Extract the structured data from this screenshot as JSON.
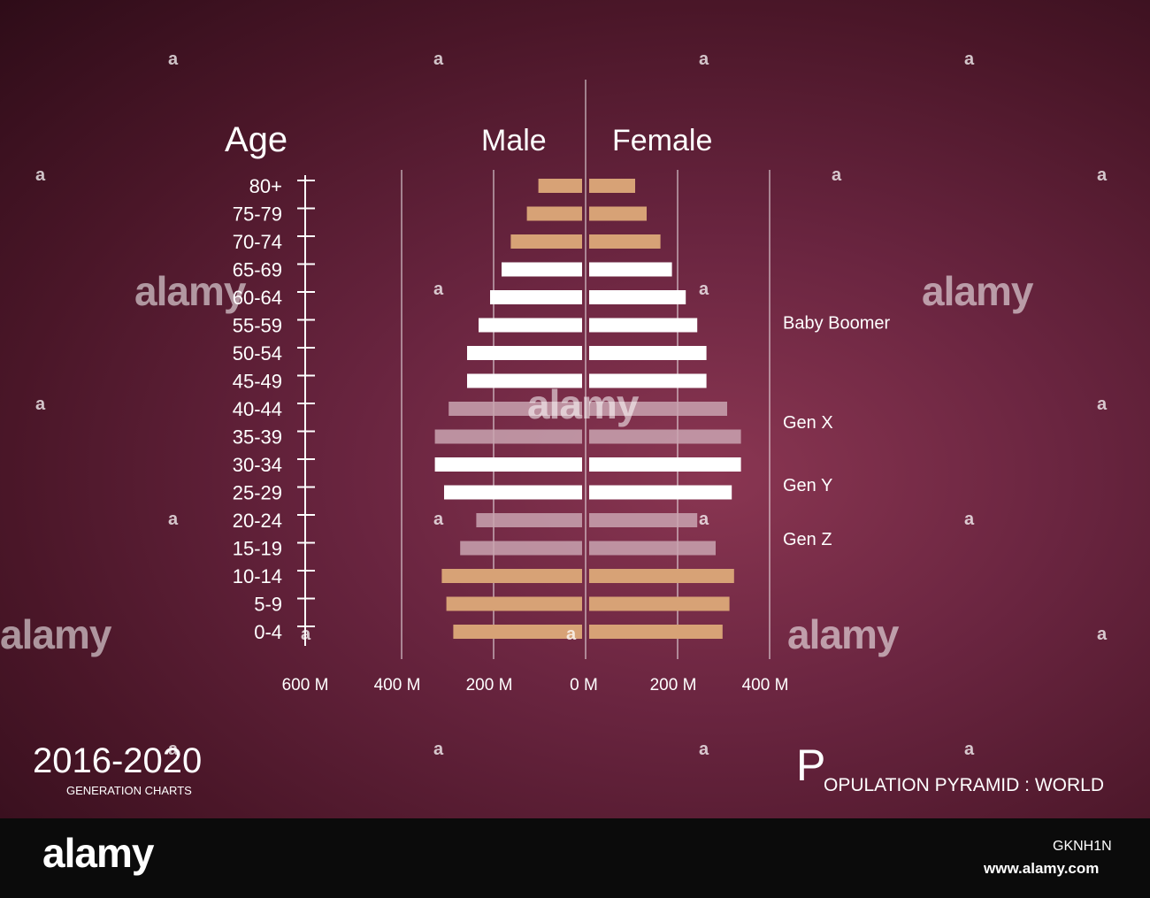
{
  "chart_data": {
    "type": "bar",
    "subtype": "population-pyramid",
    "title": "OPULATION PYRAMID : WORLD",
    "title_initial": "P",
    "age_label": "Age",
    "male_label": "Male",
    "female_label": "Female",
    "categories": [
      "80+",
      "75-79",
      "70-74",
      "65-69",
      "60-64",
      "55-59",
      "50-54",
      "45-49",
      "40-44",
      "35-39",
      "30-34",
      "25-29",
      "20-24",
      "15-19",
      "10-14",
      "5-9",
      "0-4"
    ],
    "series": [
      {
        "name": "Male",
        "values": [
          95,
          120,
          155,
          175,
          200,
          225,
          250,
          250,
          290,
          320,
          320,
          300,
          230,
          265,
          305,
          295,
          280
        ]
      },
      {
        "name": "Female",
        "values": [
          100,
          125,
          155,
          180,
          210,
          235,
          255,
          255,
          300,
          330,
          330,
          310,
          235,
          275,
          315,
          305,
          290
        ]
      }
    ],
    "bar_colors": [
      "#d7a276",
      "#d7a276",
      "#d7a276",
      "#ffffff",
      "#ffffff",
      "#ffffff",
      "#ffffff",
      "#ffffff",
      "#c9a3b0",
      "#c9a3b0",
      "#ffffff",
      "#ffffff",
      "#c9a3b0",
      "#c9a3b0",
      "#d7a276",
      "#d7a276",
      "#d7a276"
    ],
    "x_tick_labels": [
      "600 M",
      "400 M",
      "200 M",
      "0 M",
      "200 M",
      "400 M"
    ],
    "x_tick_values": [
      -600,
      -400,
      -200,
      0,
      200,
      400
    ],
    "xlim": [
      -600,
      400
    ],
    "generation_labels": [
      {
        "label": "Baby Boomer",
        "age_group": "55-59"
      },
      {
        "label": "Gen X",
        "age_group": "40-44"
      },
      {
        "label": "Gen Y",
        "age_group": "30-34"
      },
      {
        "label": "Gen Z",
        "age_group": "20-24"
      }
    ],
    "grid": true
  },
  "footer_left": {
    "years": "2016-2020",
    "subtitle": "GENERATION CHARTS"
  },
  "watermark": {
    "brand": "alamy",
    "image_id": "GKNH1N",
    "url": "www.alamy.com"
  }
}
